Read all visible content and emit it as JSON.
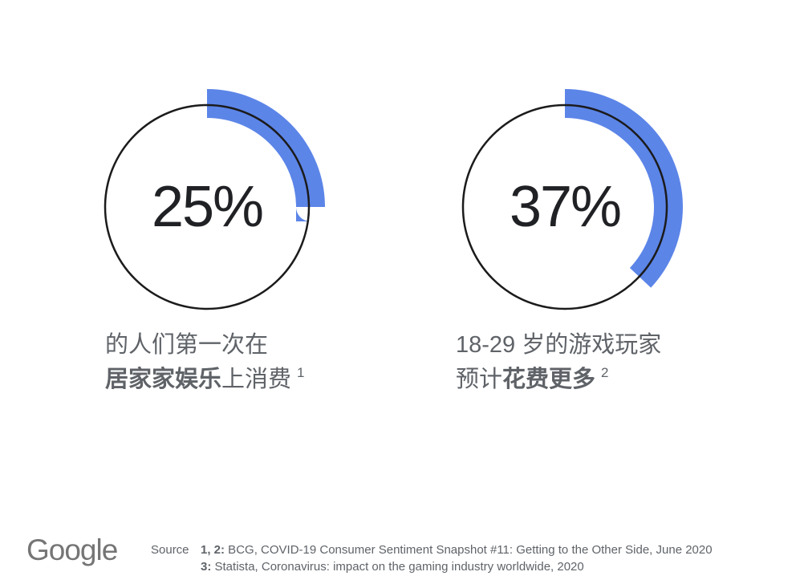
{
  "page": {
    "background": "#ffffff"
  },
  "colors": {
    "accent_blue": "#5C85E8",
    "ring_stroke": "#1B1B1B",
    "percent_text": "#202124",
    "caption_text": "#5F6368",
    "source_text": "#5F6368",
    "logo_gray": "#757575"
  },
  "charts": [
    {
      "id": "stat-25-home-entertainment",
      "percent": 25,
      "label": "25%",
      "caption_lines": [
        [
          {
            "t": "的人们第一次在",
            "bold": false
          }
        ],
        [
          {
            "t": "居家家娱乐",
            "bold": true
          },
          {
            "t": "上消费",
            "bold": false
          },
          {
            "t": "1",
            "sup": true
          }
        ]
      ]
    },
    {
      "id": "stat-37-gamers-18-29",
      "percent": 37,
      "label": "37%",
      "caption_lines": [
        [
          {
            "t": "18-29 岁的游戏玩家",
            "bold": false
          }
        ],
        [
          {
            "t": "预计",
            "bold": false
          },
          {
            "t": "花费更多",
            "bold": true
          },
          {
            "t": "2",
            "sup": true
          }
        ]
      ]
    }
  ],
  "footer": {
    "logo_text": "Google",
    "source_label": "Source",
    "references": [
      {
        "prefix": "1, 2:",
        "text": "BCG, COVID-19 Consumer Sentiment Snapshot #11: Getting to the Other Side, June 2020"
      },
      {
        "prefix": "3:",
        "text": "Statista, Coronavirus: impact on the gaming industry worldwide, 2020"
      }
    ]
  },
  "chart_data": {
    "type": "donut",
    "charts": [
      {
        "label": "25%",
        "value": 25,
        "unit": "%",
        "caption": "的人们第一次在居家家娱乐上消费",
        "footnote": "1",
        "arc_start_deg": 0,
        "arc_sweep_deg": 90
      },
      {
        "label": "37%",
        "value": 37,
        "unit": "%",
        "caption": "18-29 岁的游戏玩家预计花费更多",
        "footnote": "2",
        "arc_start_deg": 0,
        "arc_sweep_deg": 133.2
      }
    ],
    "arc_color": "#5C85E8",
    "ring_color": "#1B1B1B",
    "legend": "none",
    "grid": false
  }
}
